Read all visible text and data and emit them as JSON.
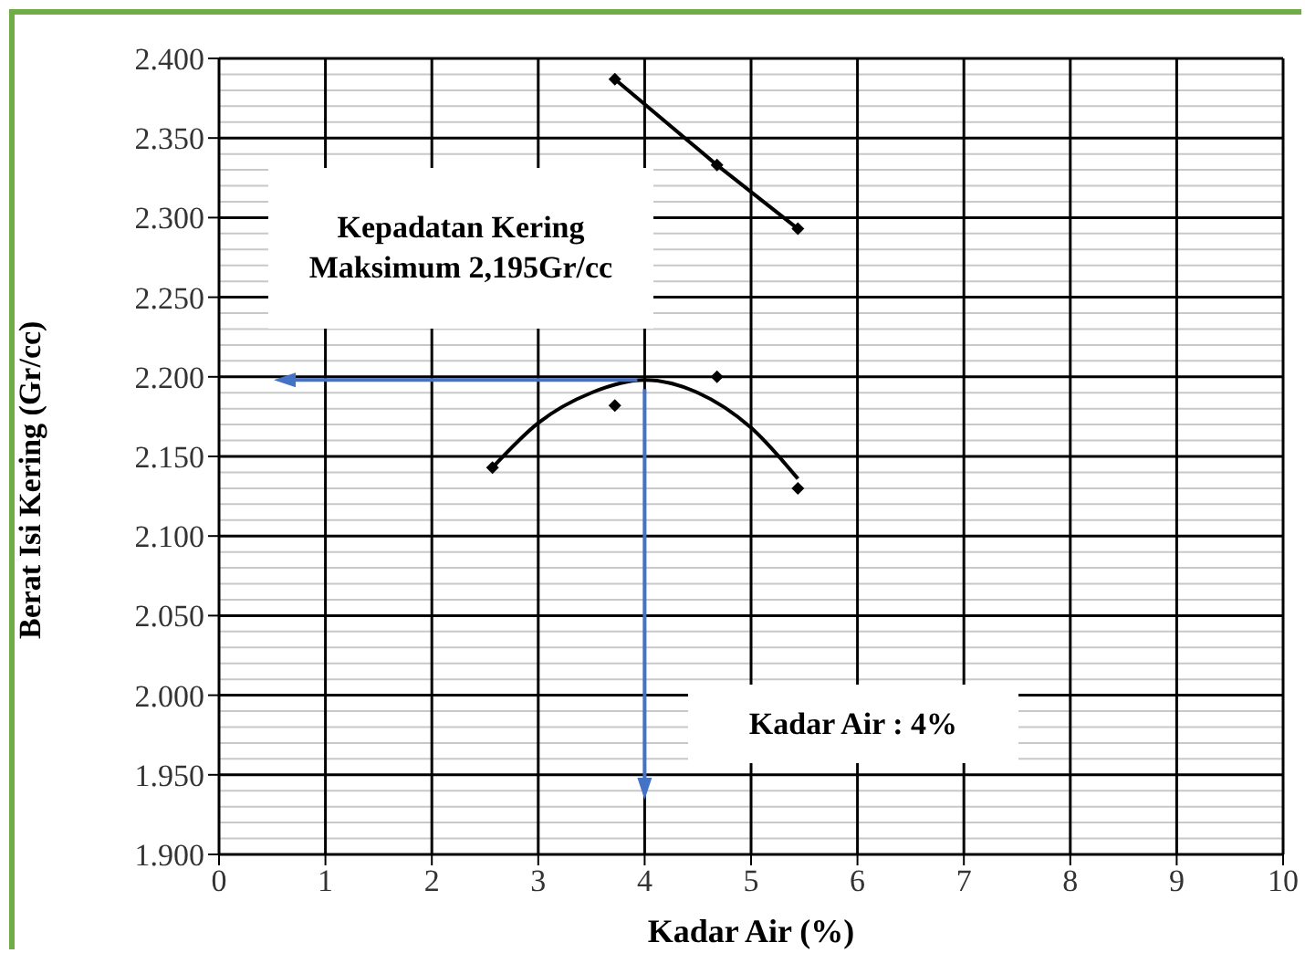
{
  "chart_data": {
    "type": "scatter",
    "xlabel": "Kadar Air (%)",
    "ylabel": "Berat Isi Kering (Gr/cc)",
    "xlim": [
      0,
      10
    ],
    "xticks": [
      0,
      1,
      2,
      3,
      4,
      5,
      6,
      7,
      8,
      9,
      10
    ],
    "ylim": [
      1.9,
      2.4
    ],
    "yticks": [
      {
        "value": 1.9,
        "label": "1.900"
      },
      {
        "value": 1.95,
        "label": "1.950"
      },
      {
        "value": 2.0,
        "label": "2.000"
      },
      {
        "value": 2.05,
        "label": "2.050"
      },
      {
        "value": 2.1,
        "label": "2.100"
      },
      {
        "value": 2.15,
        "label": "2.150"
      },
      {
        "value": 2.2,
        "label": "2.200"
      },
      {
        "value": 2.25,
        "label": "2.250"
      },
      {
        "value": 2.3,
        "label": "2.300"
      },
      {
        "value": 2.35,
        "label": "2.350"
      },
      {
        "value": 2.4,
        "label": "2.400"
      }
    ],
    "grid": true,
    "marker": "diamond",
    "series": [
      {
        "type": "line",
        "color": "#000000",
        "x": [
          3.72,
          4.68,
          5.44
        ],
        "values": [
          2.387,
          2.333,
          2.293
        ]
      },
      {
        "color": "#000000",
        "x": [
          2.57,
          3.72,
          4.68,
          5.44
        ],
        "values": [
          2.143,
          2.182,
          2.2,
          2.13
        ]
      },
      {
        "type": "line",
        "marker": "none",
        "color": "#000000",
        "x": [
          2.57,
          3.0,
          3.5,
          4.0,
          4.5,
          5.0,
          5.44
        ],
        "values": [
          2.143,
          2.171,
          2.19,
          2.198,
          2.19,
          2.168,
          2.136
        ]
      }
    ],
    "annotations": [
      "Kepadatan Kering Maksimum 2,195Gr/cc",
      "Kadar Air : 4%"
    ]
  }
}
